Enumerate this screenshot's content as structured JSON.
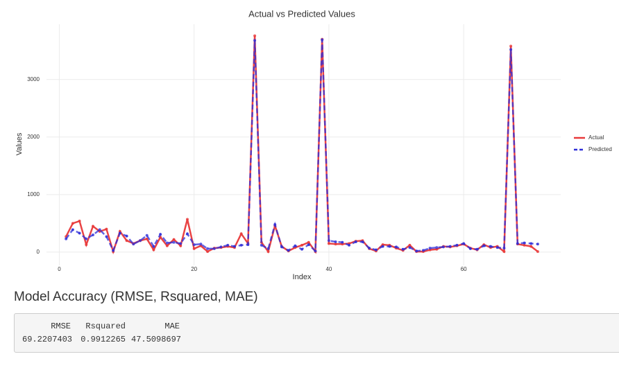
{
  "chart_data": {
    "type": "line",
    "title": "Actual vs Predicted Values",
    "xlabel": "Index",
    "ylabel": "Values",
    "x": [
      1,
      2,
      3,
      4,
      5,
      6,
      7,
      8,
      9,
      10,
      11,
      12,
      13,
      14,
      15,
      16,
      17,
      18,
      19,
      20,
      21,
      22,
      23,
      24,
      25,
      26,
      27,
      28,
      29,
      30,
      31,
      32,
      33,
      34,
      35,
      36,
      37,
      38,
      39,
      40,
      41,
      42,
      43,
      44,
      45,
      46,
      47,
      48,
      49,
      50,
      51,
      52,
      53,
      54,
      55,
      56,
      57,
      58,
      59,
      60,
      61,
      62,
      63,
      64,
      65,
      66,
      67,
      68,
      69,
      70,
      71
    ],
    "series": [
      {
        "name": "Actual",
        "color": "#e8393a",
        "dash": false,
        "values": [
          270,
          500,
          540,
          130,
          450,
          360,
          400,
          10,
          360,
          200,
          150,
          200,
          230,
          40,
          260,
          110,
          220,
          110,
          570,
          60,
          110,
          10,
          70,
          80,
          100,
          80,
          320,
          150,
          3760,
          170,
          10,
          460,
          100,
          20,
          80,
          120,
          170,
          10,
          3700,
          150,
          140,
          140,
          150,
          190,
          200,
          60,
          20,
          130,
          120,
          70,
          30,
          120,
          10,
          10,
          40,
          50,
          100,
          90,
          110,
          140,
          70,
          40,
          130,
          80,
          100,
          10,
          3580,
          140,
          120,
          100,
          10
        ]
      },
      {
        "name": "Predicted",
        "color": "#2e2ed8",
        "dash": true,
        "values": [
          230,
          390,
          330,
          230,
          300,
          390,
          270,
          30,
          330,
          280,
          140,
          200,
          290,
          100,
          310,
          160,
          170,
          150,
          320,
          130,
          140,
          60,
          60,
          90,
          120,
          100,
          120,
          130,
          3680,
          120,
          60,
          480,
          90,
          30,
          110,
          50,
          130,
          20,
          3690,
          200,
          180,
          170,
          120,
          180,
          180,
          70,
          40,
          100,
          100,
          90,
          50,
          80,
          20,
          30,
          70,
          80,
          90,
          100,
          120,
          150,
          60,
          50,
          110,
          100,
          80,
          70,
          3520,
          150,
          160,
          150,
          140
        ]
      }
    ],
    "xlim": [
      -1.9,
      74.4
    ],
    "ylim": [
      -230,
      3960
    ],
    "xticks": [
      0,
      20,
      40,
      60
    ],
    "yticks": [
      0,
      1000,
      2000,
      3000
    ],
    "grid": true,
    "legend": "right"
  },
  "section": {
    "title": "Model Accuracy (RMSE, Rsquared, MAE)"
  },
  "table": {
    "columns": [
      "RMSE",
      "Rsquared",
      "MAE"
    ],
    "rows": [
      [
        69.2207403,
        0.9912265,
        47.5098697
      ]
    ]
  }
}
